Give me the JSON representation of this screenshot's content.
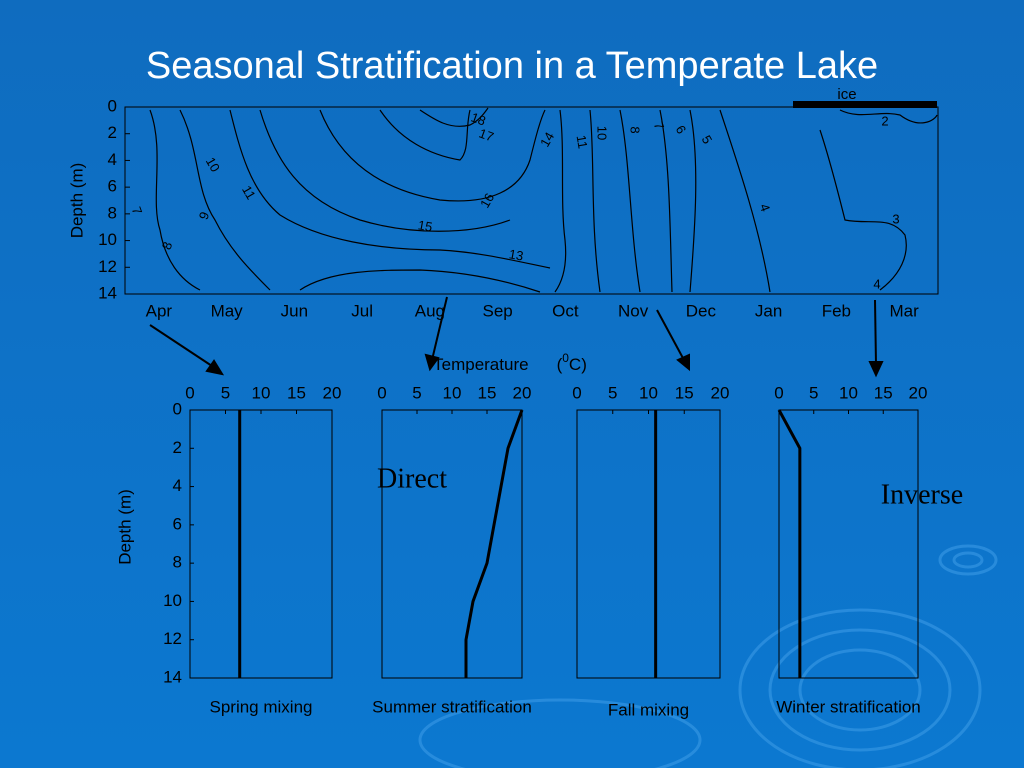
{
  "title": "Seasonal Stratification in a Temperate Lake",
  "profile_axis_label": {
    "text": "Temperature",
    "unit_open": "(",
    "unit_sup": "0",
    "unit_close": "C)"
  },
  "chart_data": [
    {
      "type": "contour",
      "categories": [
        "Apr",
        "May",
        "Jun",
        "Jul",
        "Aug",
        "Sep",
        "Oct",
        "Nov",
        "Dec",
        "Jan",
        "Feb",
        "Mar"
      ],
      "y_label": "Depth (m)",
      "ylim": [
        0,
        14
      ],
      "yticks": [
        0,
        2,
        4,
        6,
        8,
        10,
        12,
        14
      ],
      "contour_labels": [
        18,
        17,
        14,
        11,
        10,
        8,
        7,
        6,
        5,
        2,
        10,
        11,
        7,
        9,
        8,
        16,
        15,
        13,
        4,
        3,
        4
      ],
      "ice_label": "ice"
    },
    {
      "type": "line",
      "caption": "Spring mixing",
      "y_label": "Depth (m)",
      "x": [
        7,
        7
      ],
      "values": [
        0,
        14
      ],
      "xlim": [
        0,
        20
      ],
      "xticks": [
        0,
        5,
        10,
        15,
        20
      ],
      "ylim": [
        0,
        14
      ],
      "yticks": [
        0,
        2,
        4,
        6,
        8,
        10,
        12,
        14
      ]
    },
    {
      "type": "line",
      "caption": "Summer stratification",
      "annotation": "Direct",
      "x": [
        20,
        18,
        15,
        13,
        12,
        12
      ],
      "values": [
        0,
        2,
        8,
        10,
        12,
        14
      ],
      "xlim": [
        0,
        20
      ],
      "xticks": [
        0,
        5,
        10,
        15,
        20
      ],
      "ylim": [
        0,
        14
      ]
    },
    {
      "type": "line",
      "caption": "Fall mixing",
      "x": [
        11,
        11
      ],
      "values": [
        0,
        14
      ],
      "xlim": [
        0,
        20
      ],
      "xticks": [
        0,
        5,
        10,
        15,
        20
      ],
      "ylim": [
        0,
        14
      ]
    },
    {
      "type": "line",
      "caption": "Winter stratification",
      "annotation": "Inverse",
      "x": [
        0,
        3,
        3
      ],
      "values": [
        0,
        2,
        14
      ],
      "xlim": [
        0,
        20
      ],
      "xticks": [
        0,
        5,
        10,
        15,
        20
      ],
      "ylim": [
        0,
        14
      ]
    }
  ]
}
